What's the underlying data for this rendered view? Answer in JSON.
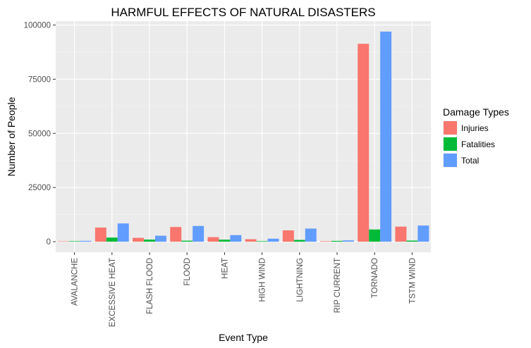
{
  "chart_data": {
    "type": "bar",
    "title": "HARMFUL EFFECTS OF NATURAL DISASTERS",
    "xlabel": "Event Type",
    "ylabel": "Number of People",
    "ylim": [
      0,
      100000
    ],
    "yticks": [
      0,
      25000,
      50000,
      75000,
      100000
    ],
    "grid": true,
    "legend": {
      "title": "Damage Types",
      "position": "right"
    },
    "categories": [
      "AVALANCHE",
      "EXCESSIVE HEAT",
      "FLASH FLOOD",
      "FLOOD",
      "HEAT",
      "HIGH WIND",
      "LIGHTNING",
      "RIP CURRENT",
      "TORNADO",
      "TSTM WIND"
    ],
    "series": [
      {
        "name": "Injuries",
        "color": "#F8766D",
        "values": [
          170,
          6525,
          1777,
          6789,
          2100,
          1137,
          5230,
          232,
          91346,
          6957
        ]
      },
      {
        "name": "Fatalities",
        "color": "#00BA38",
        "values": [
          224,
          1903,
          978,
          470,
          937,
          248,
          816,
          368,
          5633,
          504
        ]
      },
      {
        "name": "Total",
        "color": "#619CFF",
        "values": [
          394,
          8428,
          2755,
          7259,
          3037,
          1385,
          6046,
          600,
          96979,
          7461
        ]
      }
    ]
  }
}
